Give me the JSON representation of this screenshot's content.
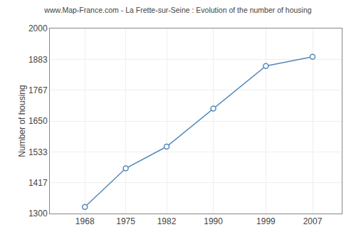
{
  "chart_data": {
    "type": "line",
    "title": "www.Map-France.com - La Frette-sur-Seine : Evolution of the number of housing",
    "ylabel": "Number of housing",
    "x": [
      1968,
      1975,
      1982,
      1990,
      1999,
      2007
    ],
    "values": [
      1325,
      1471,
      1553,
      1697,
      1858,
      1893
    ],
    "xlim": [
      1962,
      2012
    ],
    "xticks": [
      1968,
      1975,
      1982,
      1990,
      1999,
      2007
    ],
    "ylim": [
      1300,
      2000
    ],
    "yticks": [
      1300,
      1417,
      1533,
      1650,
      1767,
      1883,
      2000
    ],
    "grid": true,
    "color": "#5588bb",
    "marker": "circle"
  }
}
